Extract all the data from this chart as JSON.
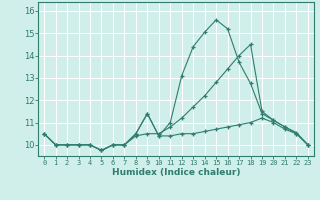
{
  "title": "",
  "xlabel": "Humidex (Indice chaleur)",
  "ylabel": "",
  "bg_color": "#d0eeea",
  "grid_color": "#ffffff",
  "line_color": "#2e7d6e",
  "xlim": [
    -0.5,
    23.5
  ],
  "ylim": [
    9.5,
    16.4
  ],
  "xticks": [
    0,
    1,
    2,
    3,
    4,
    5,
    6,
    7,
    8,
    9,
    10,
    11,
    12,
    13,
    14,
    15,
    16,
    17,
    18,
    19,
    20,
    21,
    22,
    23
  ],
  "yticks": [
    10,
    11,
    12,
    13,
    14,
    15,
    16
  ],
  "line1_y": [
    10.5,
    10.0,
    10.0,
    10.0,
    10.0,
    9.75,
    10.0,
    10.0,
    10.5,
    11.4,
    10.4,
    10.4,
    10.5,
    10.5,
    10.6,
    10.7,
    10.8,
    10.9,
    11.0,
    11.2,
    11.0,
    10.7,
    10.5,
    10.0
  ],
  "line2_y": [
    10.5,
    10.0,
    10.0,
    10.0,
    10.0,
    9.75,
    10.0,
    10.0,
    10.4,
    10.5,
    10.5,
    10.8,
    11.2,
    11.7,
    12.2,
    12.8,
    13.4,
    14.0,
    14.5,
    11.5,
    11.1,
    10.8,
    10.5,
    10.0
  ],
  "line3_y": [
    10.5,
    10.0,
    10.0,
    10.0,
    10.0,
    9.75,
    10.0,
    10.0,
    10.5,
    11.4,
    10.4,
    11.0,
    13.1,
    14.4,
    15.05,
    15.6,
    15.2,
    13.7,
    12.75,
    11.4,
    11.1,
    10.8,
    10.55,
    10.0
  ]
}
